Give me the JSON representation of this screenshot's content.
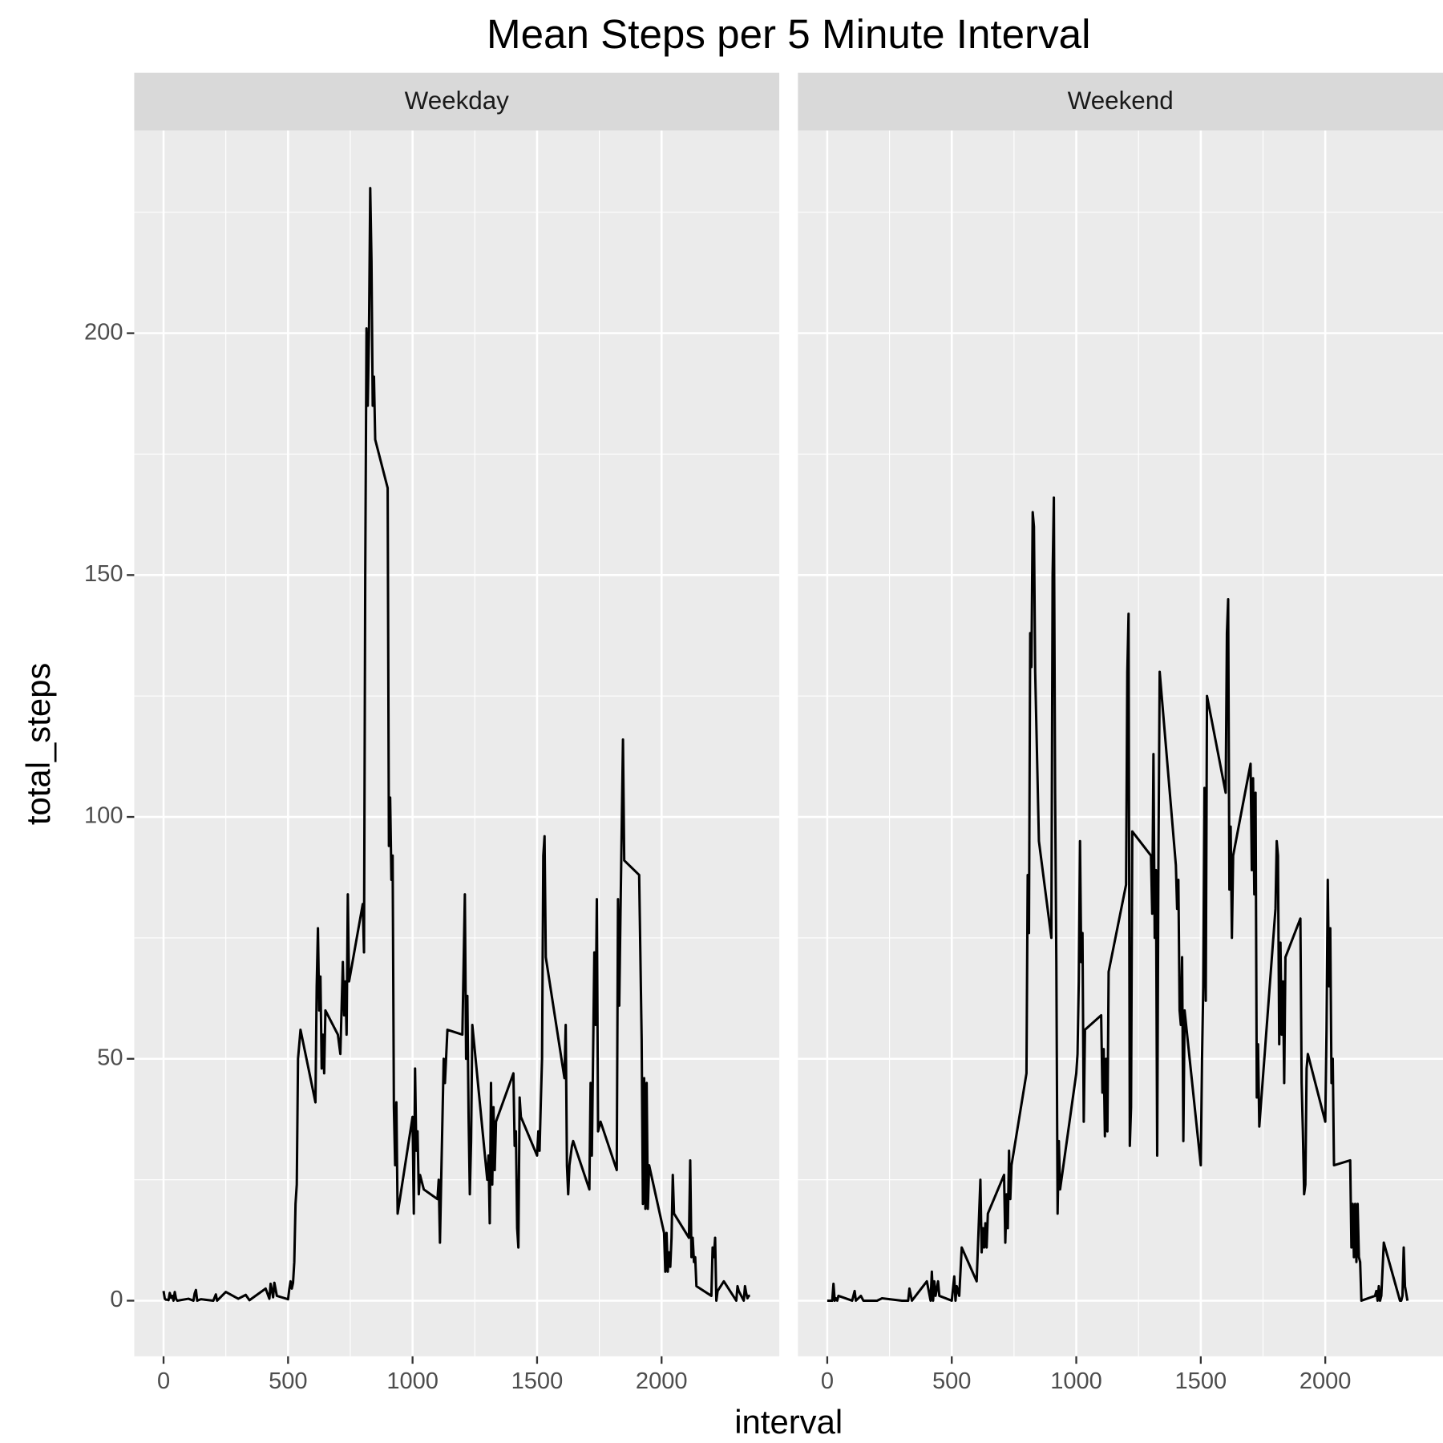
{
  "chart_data": {
    "type": "line",
    "title": "Mean Steps per 5 Minute Interval",
    "x_label": "interval",
    "y_label": "total_steps",
    "color": "#000000",
    "grid": true,
    "xlim": [
      -117.75,
      2472.75
    ],
    "ylim": [
      -11.5,
      241.9
    ],
    "xticks": [
      0,
      500,
      1000,
      1500,
      2000
    ],
    "yticks": [
      0,
      50,
      100,
      150,
      200
    ],
    "panels": [
      {
        "label": "Weekday",
        "x": [
          0,
          5,
          10,
          15,
          20,
          25,
          30,
          35,
          40,
          45,
          50,
          55,
          100,
          120,
          125,
          130,
          135,
          150,
          200,
          210,
          215,
          250,
          300,
          330,
          345,
          410,
          425,
          430,
          440,
          445,
          455,
          500,
          505,
          510,
          515,
          520,
          525,
          530,
          535,
          540,
          550,
          610,
          615,
          620,
          625,
          630,
          635,
          640,
          645,
          650,
          700,
          710,
          720,
          725,
          730,
          735,
          740,
          745,
          800,
          805,
          810,
          815,
          820,
          825,
          830,
          835,
          840,
          845,
          850,
          900,
          905,
          910,
          915,
          920,
          925,
          930,
          935,
          940,
          1000,
          1005,
          1010,
          1015,
          1020,
          1025,
          1030,
          1045,
          1100,
          1105,
          1110,
          1115,
          1125,
          1130,
          1140,
          1200,
          1210,
          1215,
          1220,
          1225,
          1230,
          1235,
          1240,
          1300,
          1305,
          1310,
          1315,
          1320,
          1325,
          1330,
          1335,
          1405,
          1410,
          1415,
          1420,
          1425,
          1430,
          1435,
          1500,
          1505,
          1510,
          1515,
          1520,
          1525,
          1530,
          1535,
          1610,
          1615,
          1620,
          1625,
          1630,
          1640,
          1645,
          1710,
          1715,
          1720,
          1730,
          1735,
          1740,
          1745,
          1755,
          1820,
          1825,
          1830,
          1835,
          1845,
          1850,
          1910,
          1920,
          1925,
          1930,
          1935,
          1940,
          1945,
          1950,
          2010,
          2015,
          2020,
          2025,
          2030,
          2035,
          2040,
          2045,
          2050,
          2110,
          2115,
          2120,
          2125,
          2130,
          2135,
          2140,
          2200,
          2205,
          2210,
          2215,
          2220,
          2225,
          2250,
          2300,
          2305,
          2310,
          2330,
          2335,
          2340,
          2345,
          2350,
          2355
        ],
        "values": [
          2,
          0.4,
          0.2,
          0.2,
          0.1,
          1.6,
          0.6,
          1,
          0,
          1.8,
          0.4,
          0,
          0.4,
          0,
          1.5,
          2.2,
          0,
          0.3,
          0,
          1.3,
          0,
          1.8,
          0.4,
          1.2,
          0.1,
          2.5,
          0.4,
          3.5,
          0.7,
          3.7,
          1,
          0.3,
          2.4,
          4,
          2.5,
          3.7,
          8,
          20,
          24,
          50,
          56,
          41,
          65,
          77,
          60,
          67,
          48,
          55,
          47,
          60,
          55,
          51,
          70,
          59,
          66,
          55,
          84,
          66,
          82,
          72,
          150,
          201,
          185,
          200,
          230,
          215,
          185,
          191,
          178,
          168,
          94,
          104,
          87,
          92,
          40,
          28,
          41,
          18,
          38,
          18,
          48,
          31,
          35,
          22,
          26,
          23,
          21,
          25,
          12,
          25,
          50,
          45,
          56,
          55,
          84,
          50,
          63,
          38,
          22,
          33,
          57,
          25,
          30,
          16,
          45,
          24,
          40,
          27,
          37,
          47,
          32,
          35,
          15,
          11,
          42,
          38,
          30,
          35,
          31,
          41,
          50,
          92,
          96,
          71,
          46,
          57,
          28,
          22,
          28,
          32,
          33,
          23,
          45,
          30,
          72,
          57,
          83,
          35,
          37,
          27,
          83,
          61,
          80,
          116,
          91,
          88,
          54,
          20,
          46,
          19,
          45,
          19,
          28,
          14,
          6,
          14,
          6,
          10,
          7,
          13,
          26,
          18,
          13,
          29,
          9,
          13,
          8,
          9,
          3,
          1,
          11,
          9,
          13,
          0,
          2,
          4,
          0,
          3,
          2,
          0,
          3,
          1.5,
          0.5,
          1,
          1
        ]
      },
      {
        "label": "Weekend",
        "x": [
          0,
          10,
          20,
          25,
          30,
          35,
          40,
          45,
          100,
          110,
          115,
          135,
          145,
          200,
          220,
          300,
          325,
          330,
          340,
          400,
          415,
          420,
          425,
          430,
          435,
          445,
          450,
          500,
          510,
          515,
          520,
          530,
          540,
          600,
          615,
          620,
          625,
          630,
          635,
          640,
          645,
          710,
          715,
          720,
          725,
          730,
          735,
          740,
          800,
          805,
          810,
          815,
          820,
          825,
          830,
          835,
          850,
          900,
          905,
          910,
          915,
          920,
          925,
          930,
          935,
          1000,
          1005,
          1010,
          1015,
          1020,
          1025,
          1030,
          1035,
          1100,
          1105,
          1110,
          1115,
          1120,
          1125,
          1130,
          1200,
          1205,
          1210,
          1215,
          1220,
          1225,
          1300,
          1305,
          1310,
          1315,
          1320,
          1325,
          1330,
          1335,
          1400,
          1405,
          1410,
          1415,
          1420,
          1425,
          1430,
          1435,
          1500,
          1505,
          1510,
          1515,
          1520,
          1525,
          1600,
          1605,
          1610,
          1615,
          1620,
          1625,
          1630,
          1700,
          1705,
          1710,
          1715,
          1720,
          1725,
          1730,
          1735,
          1800,
          1805,
          1810,
          1815,
          1820,
          1825,
          1830,
          1835,
          1840,
          1900,
          1905,
          1910,
          1915,
          1920,
          1925,
          1930,
          2000,
          2005,
          2010,
          2015,
          2020,
          2025,
          2030,
          2035,
          2100,
          2105,
          2110,
          2115,
          2120,
          2125,
          2130,
          2135,
          2140,
          2145,
          2200,
          2205,
          2210,
          2215,
          2220,
          2225,
          2235,
          2300,
          2305,
          2310,
          2315,
          2320,
          2330
        ],
        "values": [
          0,
          0,
          0,
          3.5,
          0,
          0.5,
          0,
          1,
          0,
          2,
          0,
          1,
          0,
          0,
          0.5,
          0,
          0,
          2.5,
          0,
          4,
          0,
          6,
          0,
          4,
          1,
          4,
          1,
          0,
          5,
          0,
          3,
          1,
          11,
          4,
          25,
          10,
          15,
          11,
          16,
          11,
          18,
          26,
          12,
          22,
          15,
          31,
          21,
          28,
          47,
          88,
          76,
          138,
          131,
          163,
          160,
          130,
          95,
          75,
          150,
          166,
          105,
          70,
          18,
          33,
          23,
          47,
          51,
          66,
          95,
          70,
          76,
          37,
          56,
          59,
          43,
          52,
          34,
          50,
          35,
          68,
          86,
          130,
          142,
          32,
          40,
          97,
          92,
          80,
          113,
          75,
          89,
          30,
          92,
          130,
          90,
          81,
          87,
          60,
          57,
          71,
          33,
          60,
          28,
          50,
          65,
          106,
          62,
          125,
          105,
          138,
          145,
          85,
          98,
          75,
          92,
          111,
          89,
          108,
          84,
          105,
          42,
          53,
          36,
          81,
          95,
          92,
          53,
          74,
          55,
          66,
          45,
          71,
          79,
          45,
          35,
          22,
          24,
          48,
          51,
          37,
          56,
          87,
          65,
          77,
          45,
          50,
          28,
          29,
          11,
          20,
          9,
          20,
          8,
          20,
          9,
          8,
          0,
          1,
          2,
          0,
          3,
          0,
          1,
          12,
          0,
          0,
          1,
          11,
          3,
          0
        ]
      }
    ]
  }
}
